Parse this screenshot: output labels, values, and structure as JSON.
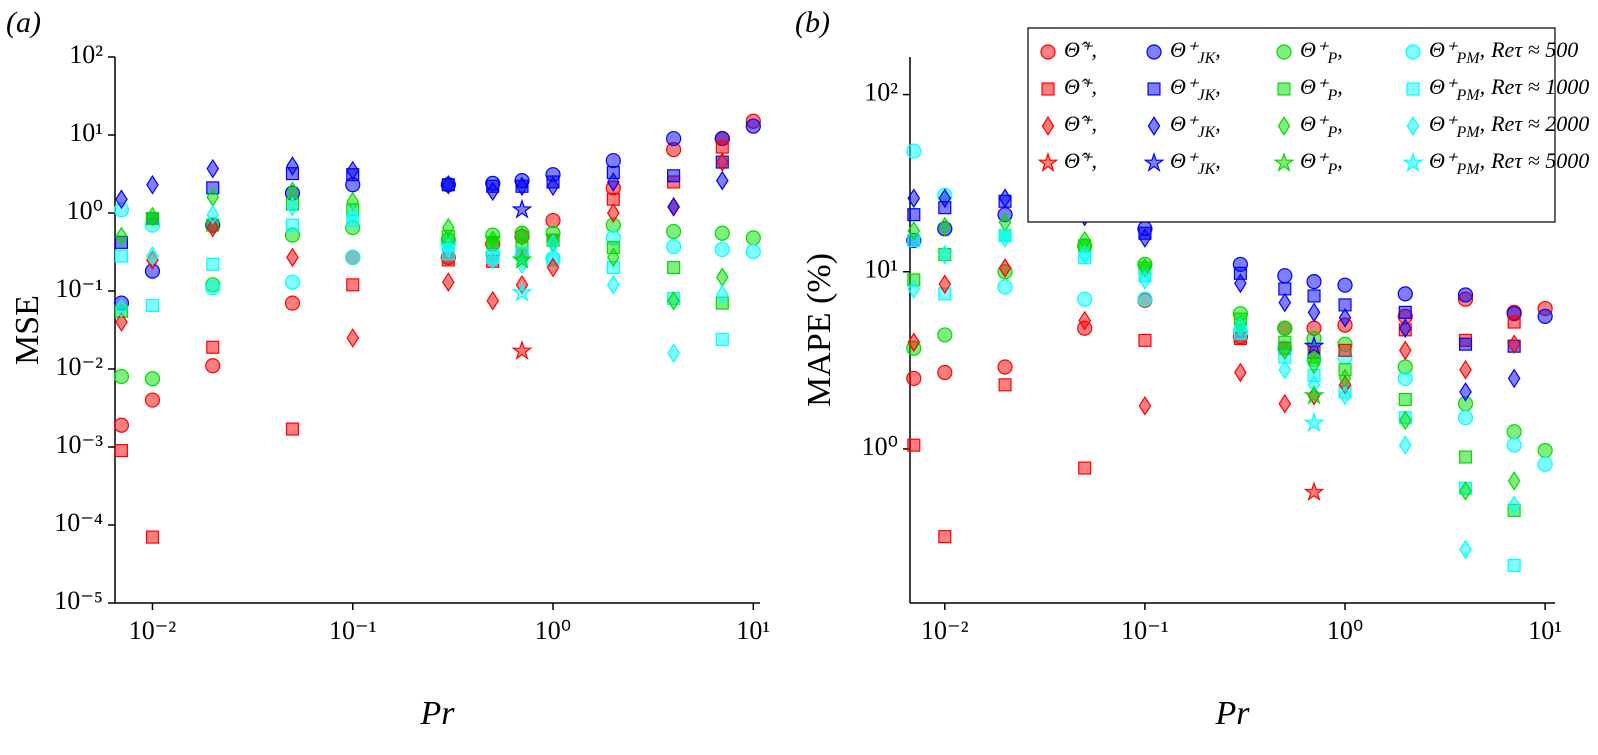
{
  "chart_data": [
    {
      "type": "scatter",
      "panel_label": "(a)",
      "xlabel": "Pr",
      "ylabel": "MSE",
      "xscale": "log",
      "yscale": "log",
      "x": [
        0.007,
        0.01,
        0.02,
        0.05,
        0.1,
        0.3,
        0.5,
        0.7,
        1,
        2,
        4,
        7,
        10
      ],
      "xlim": [
        0.0065,
        10.8
      ],
      "ylim": [
        1e-05,
        100
      ],
      "xticks": [
        {
          "value": 0.01,
          "label": "10⁻²"
        },
        {
          "value": 0.1,
          "label": "10⁻¹"
        },
        {
          "value": 1,
          "label": "10⁰"
        },
        {
          "value": 10,
          "label": "10¹"
        }
      ],
      "yticks": [
        {
          "value": 1e-05,
          "label": "10⁻⁵"
        },
        {
          "value": 0.0001,
          "label": "10⁻⁴"
        },
        {
          "value": 0.001,
          "label": "10⁻³"
        },
        {
          "value": 0.01,
          "label": "10⁻²"
        },
        {
          "value": 0.1,
          "label": "10⁻¹"
        },
        {
          "value": 1,
          "label": "10⁰"
        },
        {
          "value": 10,
          "label": "10¹"
        },
        {
          "value": 100,
          "label": "10²"
        }
      ],
      "series": [
        {
          "color": "#ff0000",
          "marker": "circle",
          "values": [
            0.0019,
            0.004,
            0.011,
            0.07,
            0.27,
            0.27,
            0.4,
            0.5,
            0.8,
            2.1,
            6.5,
            9,
            15
          ]
        },
        {
          "color": "#0000ff",
          "marker": "circle",
          "values": [
            0.07,
            0.18,
            0.7,
            1.8,
            2.3,
            2.3,
            2.4,
            2.6,
            3.1,
            4.7,
            9,
            9,
            13
          ]
        },
        {
          "color": "#00dd00",
          "marker": "circle",
          "values": [
            0.008,
            0.0075,
            0.12,
            0.52,
            0.65,
            0.45,
            0.52,
            0.55,
            0.55,
            0.7,
            0.58,
            0.55,
            0.48
          ]
        },
        {
          "color": "#00ffff",
          "marker": "circle",
          "values": [
            1.1,
            0.7,
            0.11,
            0.13,
            0.27,
            0.4,
            0.3,
            0.28,
            0.26,
            0.48,
            0.37,
            0.34,
            0.32
          ]
        },
        {
          "color": "#ff0000",
          "marker": "square",
          "values": [
            0.0009,
            7e-05,
            0.019,
            0.0017,
            0.12,
            0.25,
            0.24,
            0.3,
            0.45,
            1.5,
            2.5,
            7,
            null
          ]
        },
        {
          "color": "#0000ff",
          "marker": "square",
          "values": [
            0.42,
            0.85,
            2.1,
            3.2,
            3.1,
            2.3,
            2.2,
            2.2,
            2.5,
            3.3,
            3,
            4.5,
            null
          ]
        },
        {
          "color": "#00dd00",
          "marker": "square",
          "values": [
            0.055,
            0.85,
            0.7,
            1.3,
            1.1,
            0.5,
            0.42,
            0.4,
            0.45,
            0.36,
            0.2,
            0.07,
            null
          ]
        },
        {
          "color": "#00ffff",
          "marker": "square",
          "values": [
            0.28,
            0.065,
            0.22,
            0.7,
            0.8,
            0.3,
            0.27,
            0.3,
            0.25,
            0.2,
            0.08,
            0.024,
            null
          ]
        },
        {
          "color": "#ff0000",
          "marker": "diamond",
          "values": [
            0.04,
            0.25,
            0.65,
            0.27,
            0.025,
            0.13,
            0.075,
            0.12,
            0.2,
            1,
            1.2,
            4.5,
            null
          ]
        },
        {
          "color": "#0000ff",
          "marker": "diamond",
          "values": [
            1.5,
            2.3,
            3.7,
            4,
            3.5,
            2.3,
            1.9,
            2.2,
            2.2,
            2.5,
            1.2,
            2.6,
            null
          ]
        },
        {
          "color": "#00dd00",
          "marker": "diamond",
          "values": [
            0.5,
            0.9,
            1.6,
            1.9,
            1.4,
            0.65,
            0.45,
            0.5,
            0.42,
            0.27,
            0.075,
            0.15,
            null
          ]
        },
        {
          "color": "#00ffff",
          "marker": "diamond",
          "values": [
            0.06,
            0.28,
            0.95,
            1.2,
            0.95,
            0.35,
            0.25,
            0.22,
            0.4,
            0.12,
            0.016,
            0.09,
            null
          ]
        },
        {
          "color": "#ff0000",
          "marker": "star",
          "values": [
            null,
            null,
            null,
            null,
            null,
            null,
            null,
            0.017,
            null,
            null,
            null,
            null,
            null
          ]
        },
        {
          "color": "#0000ff",
          "marker": "star",
          "values": [
            null,
            null,
            null,
            null,
            null,
            null,
            null,
            1.1,
            null,
            null,
            null,
            null,
            null
          ]
        },
        {
          "color": "#00dd00",
          "marker": "star",
          "values": [
            null,
            null,
            null,
            null,
            null,
            null,
            null,
            0.25,
            null,
            null,
            null,
            null,
            null
          ]
        },
        {
          "color": "#00ffff",
          "marker": "star",
          "values": [
            null,
            null,
            null,
            null,
            null,
            null,
            null,
            0.095,
            null,
            null,
            null,
            null,
            null
          ]
        }
      ]
    },
    {
      "type": "scatter",
      "panel_label": "(b)",
      "xlabel": "Pr",
      "ylabel": "MAPE (%)",
      "xscale": "log",
      "yscale": "log",
      "x": [
        0.007,
        0.01,
        0.02,
        0.05,
        0.1,
        0.3,
        0.5,
        0.7,
        1,
        2,
        4,
        7,
        10
      ],
      "xlim": [
        0.0067,
        11.2
      ],
      "ylim": [
        0.135,
        163
      ],
      "xticks": [
        {
          "value": 0.01,
          "label": "10⁻²"
        },
        {
          "value": 0.1,
          "label": "10⁻¹"
        },
        {
          "value": 1,
          "label": "10⁰"
        },
        {
          "value": 10,
          "label": "10¹"
        }
      ],
      "yticks": [
        {
          "value": 1,
          "label": "10⁰"
        },
        {
          "value": 10,
          "label": "10¹"
        },
        {
          "value": 100,
          "label": "10²"
        }
      ],
      "legend": "upper right",
      "legend_row_labels": [
        "Reτ ≈ 500",
        "Reτ ≈ 1000",
        "Reτ ≈ 2000",
        "Reτ ≈ 5000"
      ],
      "series": [
        {
          "name": "Θ̂⁺,",
          "color": "#ff0000",
          "marker": "circle",
          "values": [
            2.5,
            2.7,
            2.9,
            4.8,
            6.9,
            4.3,
            4.8,
            4.8,
            5,
            5.6,
            7,
            5.9,
            6.2
          ]
        },
        {
          "name": "Θ⁺JK,",
          "color": "#0000ff",
          "marker": "circle",
          "values": [
            15,
            17.5,
            21,
            21,
            17.5,
            11,
            9.5,
            8.8,
            8.4,
            7.5,
            7.4,
            5.8,
            5.6
          ]
        },
        {
          "name": "Θ⁺P,",
          "color": "#00dd00",
          "marker": "circle",
          "values": [
            3.7,
            4.4,
            10,
            14,
            11,
            5.8,
            4.8,
            4.2,
            3.9,
            2.9,
            1.8,
            1.25,
            0.98
          ]
        },
        {
          "name": "Θ⁺PM,",
          "color": "#00ffff",
          "marker": "circle",
          "values": [
            48,
            27,
            8.2,
            7,
            7,
            4.6,
            3.7,
            3.2,
            3.3,
            2.5,
            1.5,
            1.05,
            0.82
          ]
        },
        {
          "name": "Θ̂⁺,",
          "color": "#ff0000",
          "marker": "square",
          "values": [
            1.05,
            0.32,
            2.3,
            0.78,
            4.1,
            4.2,
            3.7,
            3.5,
            3.6,
            4.7,
            4.1,
            5.2,
            null
          ]
        },
        {
          "name": "Θ⁺JK,",
          "color": "#0000ff",
          "marker": "square",
          "values": [
            21,
            23,
            25,
            21,
            16.5,
            9.8,
            8,
            7.3,
            6.5,
            5.9,
            3.9,
            3.8,
            null
          ]
        },
        {
          "name": "Θ⁺P,",
          "color": "#00dd00",
          "marker": "square",
          "values": [
            9,
            12.5,
            16,
            14,
            10.5,
            5.4,
            4,
            3.3,
            2.8,
            1.9,
            0.9,
            0.45,
            null
          ]
        },
        {
          "name": "Θ⁺PM,",
          "color": "#00ffff",
          "marker": "square",
          "values": [
            15,
            7.5,
            16,
            12,
            9.5,
            4.5,
            3.3,
            2.6,
            2.1,
            1.5,
            0.6,
            0.22,
            null
          ]
        },
        {
          "name": "Θ̂⁺,",
          "color": "#ff0000",
          "marker": "diamond",
          "values": [
            4,
            8.5,
            10.5,
            5.3,
            1.75,
            2.7,
            1.8,
            2,
            2.3,
            3.6,
            2.8,
            3.9,
            null
          ]
        },
        {
          "name": "Θ⁺JK,",
          "color": "#0000ff",
          "marker": "diamond",
          "values": [
            26,
            26,
            26,
            20.5,
            15.5,
            8.6,
            6.7,
            5.9,
            5.5,
            4.8,
            2.1,
            2.5,
            null
          ]
        },
        {
          "name": "Θ⁺P,",
          "color": "#00dd00",
          "marker": "diamond",
          "values": [
            17,
            18,
            19,
            15,
            10.5,
            5,
            3.6,
            3,
            2.5,
            1.45,
            0.58,
            0.66,
            null
          ]
        },
        {
          "name": "Θ⁺PM,",
          "color": "#00ffff",
          "marker": "diamond",
          "values": [
            8,
            12.5,
            15.5,
            12.5,
            9,
            4.9,
            2.8,
            2.3,
            2,
            1.05,
            0.27,
            0.48,
            null
          ]
        },
        {
          "name": "Θ̂⁺,",
          "color": "#ff0000",
          "marker": "star",
          "values": [
            null,
            null,
            null,
            null,
            null,
            null,
            null,
            0.57,
            null,
            null,
            null,
            null,
            null
          ]
        },
        {
          "name": "Θ⁺JK,",
          "color": "#0000ff",
          "marker": "star",
          "values": [
            null,
            null,
            null,
            null,
            null,
            null,
            null,
            3.8,
            null,
            null,
            null,
            null,
            null
          ]
        },
        {
          "name": "Θ⁺P,",
          "color": "#00dd00",
          "marker": "star",
          "values": [
            null,
            null,
            null,
            null,
            null,
            null,
            null,
            2,
            null,
            null,
            null,
            null,
            null
          ]
        },
        {
          "name": "Θ⁺PM,",
          "color": "#00ffff",
          "marker": "star",
          "values": [
            null,
            null,
            null,
            null,
            null,
            null,
            null,
            1.4,
            null,
            null,
            null,
            null,
            null
          ]
        }
      ]
    }
  ]
}
